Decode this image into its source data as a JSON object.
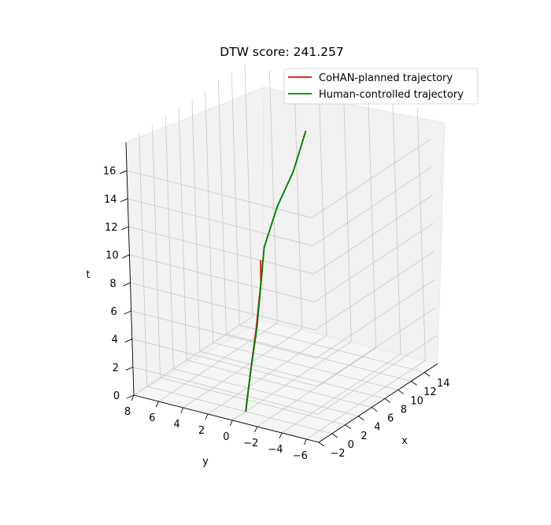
{
  "chart_data": {
    "type": "line",
    "projection": "3d",
    "title": "DTW score: 241.257",
    "xlabel": "x",
    "ylabel": "y",
    "zlabel": "t",
    "xlim": [
      -2,
      16
    ],
    "ylim": [
      -7,
      8
    ],
    "zlim": [
      0,
      18
    ],
    "xticks": [
      "−2",
      "0",
      "2",
      "4",
      "6",
      "8",
      "10",
      "12",
      "14"
    ],
    "yticks": [
      "8",
      "6",
      "4",
      "2",
      "0",
      "−2",
      "−4",
      "−6"
    ],
    "zticks": [
      "0",
      "2",
      "4",
      "6",
      "8",
      "10",
      "12",
      "14",
      "16"
    ],
    "grid": true,
    "legend_position": "top-right",
    "series": [
      {
        "name": "CoHAN-planned trajectory",
        "color": "#ff0000",
        "points": [
          [
            0.0,
            0.0,
            0.0
          ],
          [
            0.8,
            -0.1,
            2.8
          ],
          [
            1.6,
            -0.2,
            5.5
          ],
          [
            2.3,
            -0.3,
            8.5
          ],
          [
            2.2,
            -0.4,
            10.2
          ]
        ]
      },
      {
        "name": "Human-controlled trajectory",
        "color": "#008000",
        "points": [
          [
            0.0,
            0.0,
            0.0
          ],
          [
            0.8,
            -0.1,
            2.8
          ],
          [
            1.7,
            -0.2,
            5.5
          ],
          [
            2.4,
            -0.3,
            8.8
          ],
          [
            2.6,
            -0.5,
            11.0
          ],
          [
            4.2,
            -0.8,
            13.5
          ],
          [
            6.0,
            -1.2,
            15.5
          ],
          [
            7.5,
            -1.5,
            18.0
          ]
        ]
      }
    ]
  }
}
